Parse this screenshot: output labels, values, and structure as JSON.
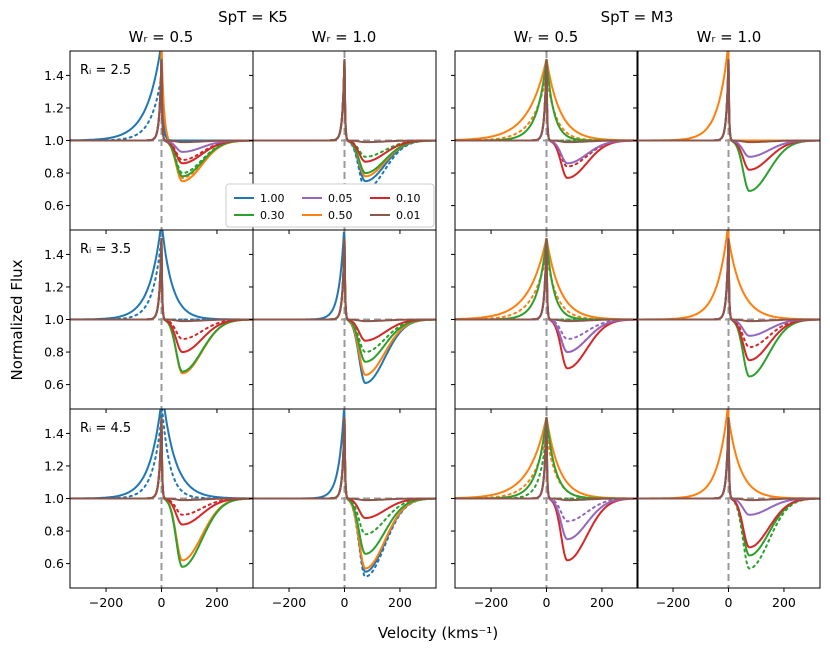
{
  "chart_data": {
    "type": "line",
    "figure": {
      "ylabel": "Normalized Flux",
      "xlabel": "Velocity (kms⁻¹)",
      "groups": [
        {
          "title": "SpT = K5",
          "columns": [
            "Wᵣ = 0.5",
            "Wᵣ = 1.0"
          ]
        },
        {
          "title": "SpT = M3",
          "columns": [
            "Wᵣ = 0.5",
            "Wᵣ = 1.0"
          ]
        }
      ],
      "row_labels": [
        "Rᵢ = 2.5",
        "Rᵢ = 3.5",
        "Rᵢ = 4.5"
      ],
      "xlim": [
        -330,
        330
      ],
      "ylim": [
        0.45,
        1.55
      ],
      "xticks": [
        -200,
        0,
        200
      ],
      "xtick_labels": [
        "−200",
        "0",
        "200"
      ],
      "yticks": [
        0.6,
        0.8,
        1.0,
        1.2,
        1.4
      ],
      "ytick_labels": [
        "0.6",
        "0.8",
        "1.0",
        "1.2",
        "1.4"
      ],
      "reference_lines": {
        "x": 0,
        "y": 1.0,
        "style": "dashed",
        "color": "#999999"
      },
      "linestyle_note": "solid and dotted variants of each model",
      "legend": {
        "location": "panel row 1, column 2, lower-left",
        "entries": [
          {
            "label": "1.00",
            "color": "#1f77b4"
          },
          {
            "label": "0.30",
            "color": "#2ca02c"
          },
          {
            "label": "0.05",
            "color": "#9467bd"
          },
          {
            "label": "0.50",
            "color": "#ff7f0e"
          },
          {
            "label": "0.10",
            "color": "#d62728"
          },
          {
            "label": "0.01",
            "color": "#8c564b"
          }
        ]
      }
    },
    "panels": [
      {
        "row": 0,
        "col": 0,
        "ri_label": true,
        "profiles": [
          {
            "label": "1.00",
            "color": "#1f77b4",
            "dash": false,
            "c": 1.0,
            "blue": {
              "w": 180,
              "amp": 0.6
            },
            "red": {
              "w": 20,
              "amp": 0.4
            }
          },
          {
            "label": "1.00",
            "color": "#1f77b4",
            "dash": true,
            "c": 1.0,
            "blue": {
              "w": 130,
              "amp": 0.4
            },
            "red": {
              "w": 20,
              "amp": 0.4
            }
          },
          {
            "label": "0.50",
            "color": "#ff7f0e",
            "dash": false,
            "c": 0.75,
            "red": {
              "w": 28,
              "amp": 0.6
            }
          },
          {
            "label": "0.50",
            "color": "#ff7f0e",
            "dash": true,
            "c": 0.77
          },
          {
            "label": "0.30",
            "color": "#2ca02c",
            "dash": false,
            "c": 0.78
          },
          {
            "label": "0.30",
            "color": "#2ca02c",
            "dash": true,
            "c": 0.8
          },
          {
            "label": "0.10",
            "color": "#d62728",
            "dash": false,
            "c": 0.86
          },
          {
            "label": "0.10",
            "color": "#d62728",
            "dash": true,
            "c": 0.88
          },
          {
            "label": "0.05",
            "color": "#9467bd",
            "dash": false,
            "c": 0.93
          },
          {
            "label": "0.01",
            "color": "#8c564b",
            "dash": false,
            "c": 0.99
          }
        ]
      },
      {
        "row": 0,
        "col": 1,
        "legend": true,
        "profiles": [
          {
            "label": "1.00",
            "color": "#1f77b4",
            "dash": false,
            "c": 0.75
          },
          {
            "label": "1.00",
            "color": "#1f77b4",
            "dash": true,
            "c": 0.7
          },
          {
            "label": "0.50",
            "color": "#ff7f0e",
            "dash": false,
            "c": 0.78
          },
          {
            "label": "0.30",
            "color": "#2ca02c",
            "dash": false,
            "c": 0.8
          },
          {
            "label": "0.30",
            "color": "#2ca02c",
            "dash": true,
            "c": 0.9
          },
          {
            "label": "0.10",
            "color": "#d62728",
            "dash": false,
            "c": 0.87
          },
          {
            "label": "0.01",
            "color": "#8c564b",
            "dash": false,
            "c": 0.99
          }
        ]
      },
      {
        "row": 0,
        "col": 2,
        "profiles": [
          {
            "label": "0.50",
            "color": "#ff7f0e",
            "dash": false,
            "c": 1.0,
            "blue": {
              "w": 230,
              "amp": 0.5
            },
            "red": {
              "w": 170,
              "amp": 0.5
            }
          },
          {
            "label": "0.50",
            "color": "#ff7f0e",
            "dash": true,
            "c": 1.0,
            "blue": {
              "w": 170,
              "amp": 0.4
            },
            "red": {
              "w": 120,
              "amp": 0.4
            }
          },
          {
            "label": "0.30",
            "color": "#2ca02c",
            "dash": false,
            "c": 1.0,
            "blue": {
              "w": 120,
              "amp": 0.5
            },
            "red": {
              "w": 90,
              "amp": 0.5
            }
          },
          {
            "label": "0.30",
            "color": "#2ca02c",
            "dash": true,
            "c": 1.0
          },
          {
            "label": "0.10",
            "color": "#d62728",
            "dash": false,
            "c": 0.77
          },
          {
            "label": "0.10",
            "color": "#d62728",
            "dash": true,
            "c": 0.84
          },
          {
            "label": "0.05",
            "color": "#9467bd",
            "dash": false,
            "c": 0.86
          },
          {
            "label": "0.01",
            "color": "#8c564b",
            "dash": false,
            "c": 0.99
          }
        ]
      },
      {
        "row": 0,
        "col": 3,
        "profiles": [
          {
            "label": "0.50",
            "color": "#ff7f0e",
            "dash": false,
            "c": 1.0,
            "blue": {
              "w": 130,
              "amp": 0.6
            }
          },
          {
            "label": "0.30",
            "color": "#2ca02c",
            "dash": false,
            "c": 0.69
          },
          {
            "label": "0.10",
            "color": "#d62728",
            "dash": false,
            "c": 0.82
          },
          {
            "label": "0.05",
            "color": "#9467bd",
            "dash": false,
            "c": 0.9
          },
          {
            "label": "0.01",
            "color": "#8c564b",
            "dash": false,
            "c": 0.99
          }
        ]
      },
      {
        "row": 1,
        "col": 0,
        "ri_label": true,
        "profiles": [
          {
            "label": "1.00",
            "color": "#1f77b4",
            "dash": false,
            "c": 1.0,
            "blue": {
              "w": 150,
              "amp": 0.6
            },
            "red": {
              "w": 130,
              "amp": 0.6
            }
          },
          {
            "label": "1.00",
            "color": "#1f77b4",
            "dash": true,
            "c": 1.0,
            "blue": {
              "w": 110,
              "amp": 0.5
            }
          },
          {
            "label": "0.50",
            "color": "#ff7f0e",
            "dash": false,
            "c": 0.67
          },
          {
            "label": "0.30",
            "color": "#2ca02c",
            "dash": false,
            "c": 0.68
          },
          {
            "label": "0.10",
            "color": "#d62728",
            "dash": false,
            "c": 0.8
          },
          {
            "label": "0.10",
            "color": "#d62728",
            "dash": true,
            "c": 0.88
          },
          {
            "label": "0.01",
            "color": "#8c564b",
            "dash": false,
            "c": 0.99
          }
        ]
      },
      {
        "row": 1,
        "col": 1,
        "profiles": [
          {
            "label": "1.00",
            "color": "#1f77b4",
            "dash": false,
            "c": 0.61,
            "blue": {
              "w": 65,
              "amp": 0.6
            }
          },
          {
            "label": "0.50",
            "color": "#ff7f0e",
            "dash": false,
            "c": 0.66
          },
          {
            "label": "0.30",
            "color": "#2ca02c",
            "dash": false,
            "c": 0.74
          },
          {
            "label": "0.30",
            "color": "#2ca02c",
            "dash": true,
            "c": 0.8
          },
          {
            "label": "0.10",
            "color": "#d62728",
            "dash": false,
            "c": 0.87
          },
          {
            "label": "0.01",
            "color": "#8c564b",
            "dash": false,
            "c": 0.99
          }
        ]
      },
      {
        "row": 1,
        "col": 2,
        "profiles": [
          {
            "label": "0.50",
            "color": "#ff7f0e",
            "dash": false,
            "c": 1.0,
            "blue": {
              "w": 220,
              "amp": 0.5
            },
            "red": {
              "w": 170,
              "amp": 0.5
            }
          },
          {
            "label": "0.50",
            "color": "#ff7f0e",
            "dash": true,
            "c": 1.0,
            "blue": {
              "w": 170,
              "amp": 0.4
            },
            "red": {
              "w": 130,
              "amp": 0.4
            }
          },
          {
            "label": "0.30",
            "color": "#2ca02c",
            "dash": false,
            "c": 1.0,
            "blue": {
              "w": 110,
              "amp": 0.5
            },
            "red": {
              "w": 90,
              "amp": 0.5
            }
          },
          {
            "label": "0.30",
            "color": "#2ca02c",
            "dash": true,
            "c": 1.0
          },
          {
            "label": "0.10",
            "color": "#d62728",
            "dash": false,
            "c": 0.7
          },
          {
            "label": "0.10",
            "color": "#d62728",
            "dash": true,
            "c": 0.8
          },
          {
            "label": "0.05",
            "color": "#9467bd",
            "dash": false,
            "c": 0.8
          },
          {
            "label": "0.05",
            "color": "#9467bd",
            "dash": true,
            "c": 0.88
          },
          {
            "label": "0.01",
            "color": "#8c564b",
            "dash": false,
            "c": 0.99
          }
        ]
      },
      {
        "row": 1,
        "col": 3,
        "profiles": [
          {
            "label": "0.50",
            "color": "#ff7f0e",
            "dash": false,
            "c": 1.0,
            "blue": {
              "w": 140,
              "amp": 0.6
            },
            "red": {
              "w": 170,
              "amp": 0.5
            }
          },
          {
            "label": "0.30",
            "color": "#2ca02c",
            "dash": false,
            "c": 0.65
          },
          {
            "label": "0.10",
            "color": "#d62728",
            "dash": false,
            "c": 0.75
          },
          {
            "label": "0.10",
            "color": "#d62728",
            "dash": true,
            "c": 0.83
          },
          {
            "label": "0.05",
            "color": "#9467bd",
            "dash": false,
            "c": 0.9
          },
          {
            "label": "0.01",
            "color": "#8c564b",
            "dash": false,
            "c": 0.99
          }
        ]
      },
      {
        "row": 2,
        "col": 0,
        "ri_label": true,
        "profiles": [
          {
            "label": "1.00",
            "color": "#1f77b4",
            "dash": false,
            "c": 1.0,
            "blue": {
              "w": 150,
              "amp": 0.6
            },
            "red": {
              "w": 160,
              "amp": 0.7
            }
          },
          {
            "label": "1.00",
            "color": "#1f77b4",
            "dash": true,
            "c": 1.0,
            "blue": {
              "w": 110,
              "amp": 0.5
            },
            "red": {
              "w": 100,
              "amp": 0.6
            }
          },
          {
            "label": "0.50",
            "color": "#ff7f0e",
            "dash": false,
            "c": 0.62
          },
          {
            "label": "0.30",
            "color": "#2ca02c",
            "dash": false,
            "c": 0.58
          },
          {
            "label": "0.10",
            "color": "#d62728",
            "dash": false,
            "c": 0.84
          },
          {
            "label": "0.10",
            "color": "#d62728",
            "dash": true,
            "c": 0.9
          },
          {
            "label": "0.01",
            "color": "#8c564b",
            "dash": false,
            "c": 0.99
          }
        ]
      },
      {
        "row": 2,
        "col": 1,
        "profiles": [
          {
            "label": "1.00",
            "color": "#1f77b4",
            "dash": false,
            "c": 0.55,
            "blue": {
              "w": 70,
              "amp": 0.6
            }
          },
          {
            "label": "1.00",
            "color": "#1f77b4",
            "dash": true,
            "c": 0.52
          },
          {
            "label": "0.50",
            "color": "#ff7f0e",
            "dash": false,
            "c": 0.57
          },
          {
            "label": "0.30",
            "color": "#2ca02c",
            "dash": false,
            "c": 0.66
          },
          {
            "label": "0.30",
            "color": "#2ca02c",
            "dash": true,
            "c": 0.78
          },
          {
            "label": "0.10",
            "color": "#d62728",
            "dash": false,
            "c": 0.88
          },
          {
            "label": "0.01",
            "color": "#8c564b",
            "dash": false,
            "c": 0.99
          }
        ]
      },
      {
        "row": 2,
        "col": 2,
        "profiles": [
          {
            "label": "0.50",
            "color": "#ff7f0e",
            "dash": false,
            "c": 1.0,
            "blue": {
              "w": 220,
              "amp": 0.5
            },
            "red": {
              "w": 160,
              "amp": 0.5
            }
          },
          {
            "label": "0.50",
            "color": "#ff7f0e",
            "dash": true,
            "c": 1.0,
            "blue": {
              "w": 170,
              "amp": 0.4
            },
            "red": {
              "w": 120,
              "amp": 0.4
            }
          },
          {
            "label": "0.30",
            "color": "#2ca02c",
            "dash": false,
            "c": 1.0,
            "blue": {
              "w": 120,
              "amp": 0.5
            },
            "red": {
              "w": 110,
              "amp": 0.5
            }
          },
          {
            "label": "0.30",
            "color": "#2ca02c",
            "dash": true,
            "c": 1.0,
            "blue": {
              "w": 85,
              "amp": 0.4
            }
          },
          {
            "label": "0.10",
            "color": "#d62728",
            "dash": false,
            "c": 0.62
          },
          {
            "label": "0.05",
            "color": "#9467bd",
            "dash": false,
            "c": 0.75
          },
          {
            "label": "0.05",
            "color": "#9467bd",
            "dash": true,
            "c": 0.86
          },
          {
            "label": "0.01",
            "color": "#8c564b",
            "dash": false,
            "c": 0.99
          }
        ]
      },
      {
        "row": 2,
        "col": 3,
        "profiles": [
          {
            "label": "0.50",
            "color": "#ff7f0e",
            "dash": false,
            "c": 1.0,
            "blue": {
              "w": 130,
              "amp": 0.6
            },
            "red": {
              "w": 150,
              "amp": 0.5
            }
          },
          {
            "label": "0.30",
            "color": "#2ca02c",
            "dash": false,
            "c": 0.65
          },
          {
            "label": "0.30",
            "color": "#2ca02c",
            "dash": true,
            "c": 0.57
          },
          {
            "label": "0.10",
            "color": "#d62728",
            "dash": false,
            "c": 0.7
          },
          {
            "label": "0.05",
            "color": "#9467bd",
            "dash": false,
            "c": 0.9
          },
          {
            "label": "0.01",
            "color": "#8c564b",
            "dash": false,
            "c": 0.99
          }
        ]
      }
    ]
  }
}
